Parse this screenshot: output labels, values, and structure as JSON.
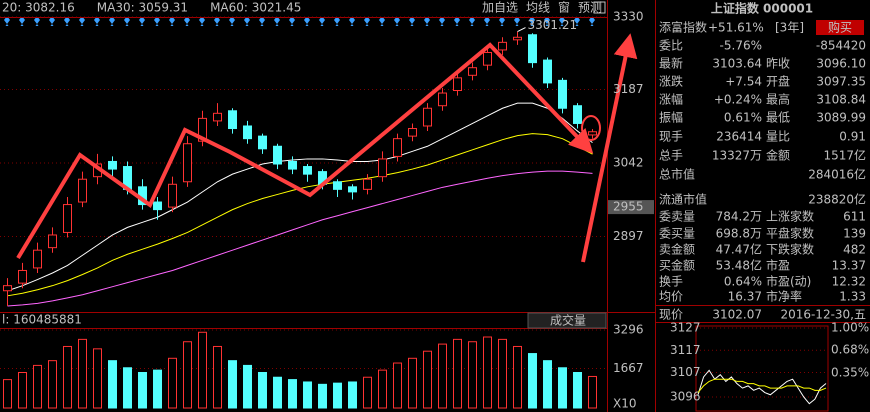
{
  "toolbar": {
    "legend": [
      {
        "text": "20: 3082.16",
        "color": "#ffffff"
      },
      {
        "text": "MA30: 3059.31",
        "color": "#ffff00"
      },
      {
        "text": "MA60: 3021.45",
        "color": "#ff66ff"
      }
    ],
    "buttons": [
      "加自选",
      "均线",
      "窗",
      "预测"
    ]
  },
  "price_chart": {
    "type": "candlestick",
    "up_color": "#ff3232",
    "down_color": "#54ffff",
    "grid": true,
    "ylim": [
      2752,
      3330
    ],
    "yticks": [
      3330,
      3187,
      3042,
      2897
    ],
    "cursor_price": 2955,
    "open": [
      2790,
      2805,
      2835,
      2875,
      2905,
      2965,
      3015,
      3045,
      3035,
      2995,
      2965,
      2955,
      3005,
      3085,
      3125,
      3145,
      3115,
      3095,
      3075,
      3045,
      3035,
      3025,
      3005,
      2995,
      2990,
      3015,
      3055,
      3095,
      3115,
      3155,
      3185,
      3215,
      3235,
      3265,
      3285,
      3295,
      3245,
      3205,
      3155,
      3097.35
    ],
    "high": [
      2815,
      2845,
      2885,
      2915,
      2975,
      3025,
      3060,
      3055,
      3045,
      3010,
      2975,
      3015,
      3095,
      3145,
      3160,
      3150,
      3125,
      3100,
      3080,
      3055,
      3040,
      3030,
      3010,
      3000,
      3020,
      3065,
      3100,
      3120,
      3160,
      3190,
      3220,
      3240,
      3270,
      3290,
      3301.21,
      3298,
      3250,
      3210,
      3160,
      3108.84
    ],
    "low": [
      2760,
      2795,
      2825,
      2865,
      2895,
      2955,
      3000,
      3015,
      2980,
      2950,
      2930,
      2945,
      2995,
      3075,
      3115,
      3100,
      3080,
      3060,
      3030,
      3020,
      3005,
      2990,
      2975,
      2970,
      2980,
      3005,
      3045,
      3085,
      3105,
      3145,
      3175,
      3205,
      3225,
      3255,
      3275,
      3230,
      3190,
      3140,
      3110,
      3089.99
    ],
    "close": [
      2800,
      2830,
      2870,
      2900,
      2960,
      3010,
      3040,
      3030,
      2990,
      2960,
      2950,
      3000,
      3080,
      3130,
      3140,
      3110,
      3090,
      3070,
      3040,
      3030,
      3020,
      3000,
      2990,
      2985,
      3010,
      3050,
      3090,
      3110,
      3150,
      3180,
      3210,
      3230,
      3260,
      3280,
      3290,
      3240,
      3200,
      3150,
      3120,
      3103.64
    ],
    "series": [
      {
        "name": "MA20",
        "color": "#ffffff",
        "values": [
          2790,
          2800,
          2812,
          2825,
          2840,
          2860,
          2880,
          2900,
          2915,
          2925,
          2935,
          2950,
          2965,
          2985,
          3005,
          3020,
          3030,
          3040,
          3045,
          3048,
          3050,
          3050,
          3048,
          3045,
          3045,
          3048,
          3055,
          3065,
          3075,
          3090,
          3105,
          3120,
          3135,
          3150,
          3160,
          3160,
          3150,
          3130,
          3105,
          3082.16
        ]
      },
      {
        "name": "MA30",
        "color": "#ffff00",
        "values": [
          2780,
          2785,
          2792,
          2800,
          2810,
          2822,
          2835,
          2850,
          2862,
          2872,
          2882,
          2893,
          2905,
          2920,
          2935,
          2950,
          2962,
          2972,
          2980,
          2988,
          2995,
          3000,
          3004,
          3008,
          3012,
          3017,
          3023,
          3030,
          3038,
          3048,
          3058,
          3068,
          3078,
          3088,
          3096,
          3100,
          3098,
          3090,
          3075,
          3059.31
        ]
      },
      {
        "name": "MA60",
        "color": "#ff66ff",
        "values": [
          2760,
          2762,
          2765,
          2770,
          2776,
          2782,
          2790,
          2798,
          2806,
          2814,
          2822,
          2830,
          2840,
          2850,
          2860,
          2870,
          2880,
          2890,
          2900,
          2910,
          2920,
          2930,
          2938,
          2946,
          2954,
          2962,
          2970,
          2978,
          2986,
          2994,
          3000,
          3006,
          3012,
          3017,
          3021,
          3024,
          3026,
          3026,
          3024,
          3021.45
        ]
      }
    ]
  },
  "volume_chart": {
    "type": "bar",
    "header": "l: 160485881",
    "selector": "成交量",
    "unit_label": "X10",
    "ylim": [
      0,
      3296
    ],
    "yticks": [
      3296,
      1667
    ],
    "values": [
      1200,
      1500,
      1800,
      2000,
      2600,
      2900,
      2500,
      2000,
      1700,
      1500,
      1600,
      2100,
      2800,
      3200,
      2600,
      2000,
      1800,
      1500,
      1300,
      1200,
      1100,
      1000,
      1050,
      1100,
      1300,
      1600,
      1900,
      2100,
      2400,
      2700,
      2900,
      2800,
      3000,
      2900,
      2600,
      2300,
      2000,
      1700,
      1500,
      1333
    ]
  },
  "quote": {
    "title": "上证指数 000001",
    "fund": [
      "添富指数",
      "+51.61%",
      "[3年]"
    ],
    "buy_button": "购买",
    "rows": [
      [
        "委比",
        "-5.76%",
        "-854420"
      ],
      [
        "最新",
        "3103.64",
        "昨收",
        "3096.10"
      ],
      [
        "涨跌",
        "+7.54",
        "开盘",
        "3097.35"
      ],
      [
        "涨幅",
        "+0.24%",
        "最高",
        "3108.84"
      ],
      [
        "振幅",
        "0.61%",
        "最低",
        "3089.99"
      ],
      [
        "现手",
        "236414",
        "量比",
        "0.91"
      ],
      [
        "总手",
        "13327万",
        "金额",
        "1517亿"
      ],
      [
        "总市值",
        "284016亿"
      ],
      [
        "流通市值",
        "238820亿"
      ],
      [
        "委卖量",
        "784.2万",
        "上涨家数",
        "611"
      ],
      [
        "委买量",
        "698.8万",
        "平盘家数",
        "139"
      ],
      [
        "卖金额",
        "47.47亿",
        "下跌家数",
        "482"
      ],
      [
        "买金额",
        "53.48亿",
        "市盈",
        "13.37"
      ],
      [
        "换手",
        "0.64%",
        "市盈(动)",
        "12.32"
      ],
      [
        "均价",
        "16.37",
        "市净率",
        "1.33"
      ],
      [
        "现价",
        "3102.07",
        "2016-12-30,五"
      ]
    ],
    "value_colors": [
      [
        "#00e600",
        "#00e600"
      ],
      [
        "#ff3232",
        "#e0e0e0"
      ],
      [
        "#ff3232",
        "#ff3232"
      ],
      [
        "#ff3232",
        "#ff3232"
      ],
      [
        "#e0e0e0",
        "#00e600"
      ],
      [
        "#e0e0e0",
        "#e0e0e0"
      ],
      [
        "#e0e0e0",
        "#e0e0e0"
      ],
      [
        "#e0e0e0"
      ],
      [
        "#e0e0e0"
      ],
      [
        "#e0e0e0",
        "#ff3232"
      ],
      [
        "#e0e0e0",
        "#e0e0e0"
      ],
      [
        "#e0e0e0",
        "#00e600"
      ],
      [
        "#e0e0e0",
        "#e0e0e0"
      ],
      [
        "#e0e0e0",
        "#e0e0e0"
      ],
      [
        "#e0e0e0",
        "#e0e0e0"
      ],
      [
        "#ff3232",
        "#c0c0c0"
      ]
    ]
  },
  "intraday_chart": {
    "type": "line",
    "ylim": [
      3096,
      3127
    ],
    "yticks": [
      3127,
      3117,
      3107,
      3096
    ],
    "y2lim": [
      0,
      1.0
    ],
    "y2ticks": [
      {
        "value": 1.0,
        "label": "1.00%"
      },
      {
        "value": 0.68,
        "label": "0.68%"
      },
      {
        "value": 0.35,
        "label": "0.35%"
      }
    ],
    "series": [
      {
        "name": "price",
        "color": "#ffffff",
        "values": [
          3097,
          3105,
          3108,
          3104,
          3106,
          3103,
          3105,
          3102,
          3100,
          3101,
          3099,
          3100,
          3098,
          3097,
          3099,
          3101,
          3103,
          3104,
          3100,
          3096,
          3093,
          3095,
          3100,
          3102.07
        ]
      },
      {
        "name": "average",
        "color": "#ffff00",
        "values": [
          3098,
          3101,
          3103,
          3104,
          3104,
          3104,
          3104,
          3103,
          3103,
          3102,
          3102,
          3101,
          3101,
          3100,
          3100,
          3100,
          3101,
          3101,
          3101,
          3100,
          3100,
          3099,
          3099,
          3100
        ]
      }
    ]
  }
}
